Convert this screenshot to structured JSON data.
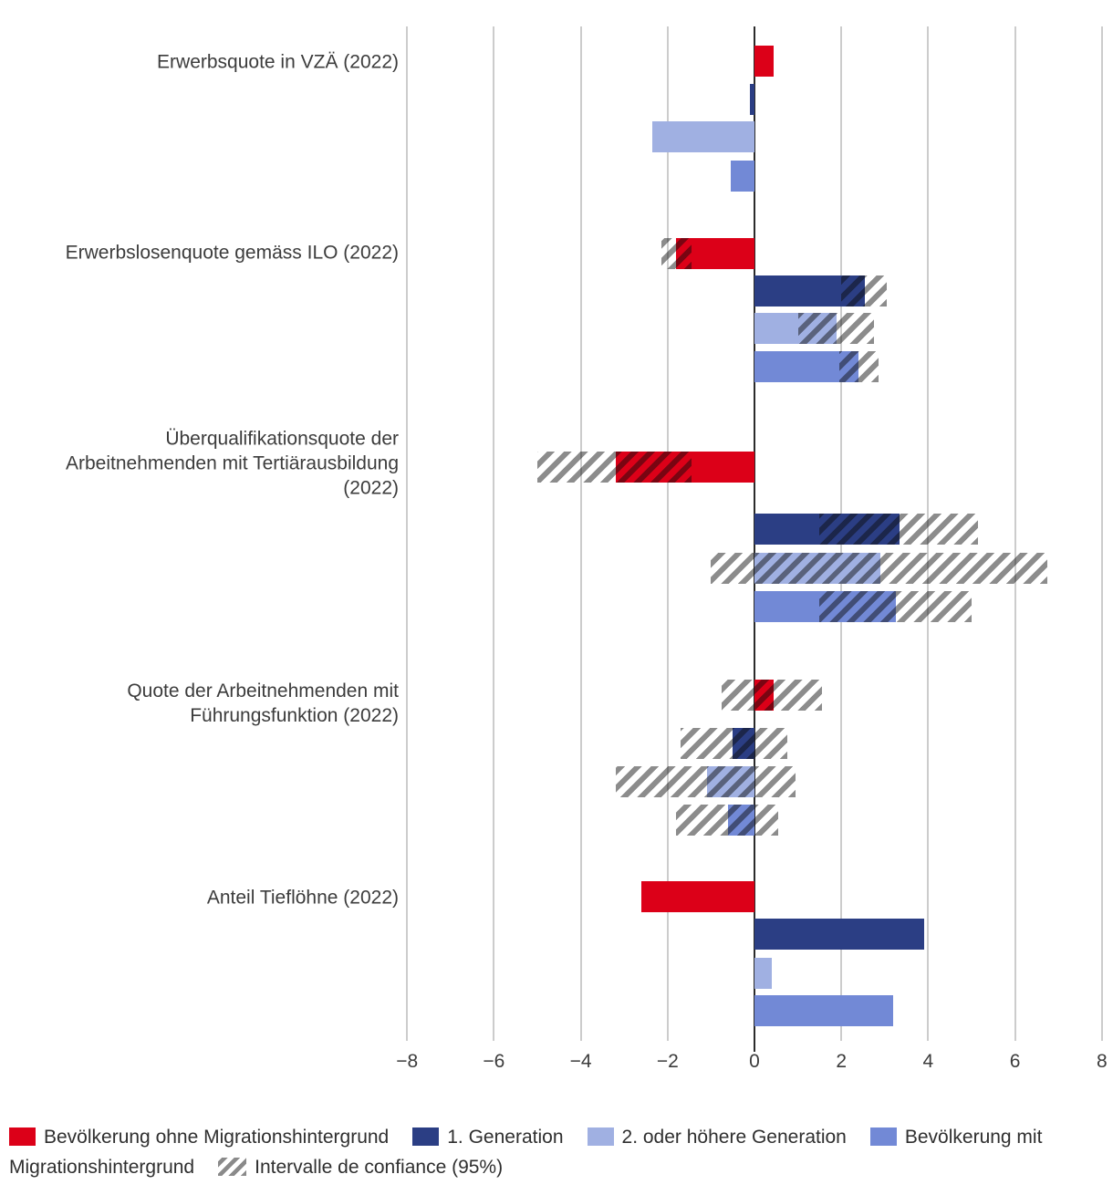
{
  "chart_data": {
    "type": "bar",
    "orientation": "horizontal",
    "title": "",
    "xlabel": "",
    "xlim": [
      -8,
      8
    ],
    "x_ticks": [
      -8,
      -6,
      -4,
      -2,
      0,
      2,
      4,
      6,
      8
    ],
    "x_tick_labels": [
      "−8",
      "−6",
      "−4",
      "−2",
      "0",
      "2",
      "4",
      "6",
      "8"
    ],
    "grid": "vertical-gridlines-on",
    "legend_position": "bottom",
    "series": [
      "Bevölkerung ohne Migrationshintergrund",
      "1. Generation",
      "2. oder höhere Generation",
      "Bevölkerung mit Migrationshintergrund"
    ],
    "ci_series_label": "Intervalle de confiance (95%)",
    "groups": [
      {
        "label": "Erwerbsquote in VZÄ (2022)",
        "values": [
          0.45,
          -0.1,
          -2.35,
          -0.55
        ],
        "ci": [
          null,
          null,
          null,
          null
        ]
      },
      {
        "label": "Erwerbslosenquote gemäss ILO (2022)",
        "values": [
          -1.8,
          2.55,
          1.9,
          2.4
        ],
        "ci": [
          [
            -2.15,
            -1.45
          ],
          [
            2.0,
            3.05
          ],
          [
            1.0,
            2.75
          ],
          [
            1.95,
            2.85
          ]
        ]
      },
      {
        "label": "Überqualifikationsquote der Arbeitnehmenden mit Tertiärausbildung (2022)",
        "values": [
          -3.2,
          3.35,
          2.9,
          3.25
        ],
        "ci": [
          [
            -5.0,
            -1.45
          ],
          [
            1.5,
            5.15
          ],
          [
            -1.0,
            6.75
          ],
          [
            1.5,
            5.0
          ]
        ]
      },
      {
        "label": "Quote der Arbeitnehmenden mit Führungsfunktion (2022)",
        "values": [
          0.45,
          -0.5,
          -1.1,
          -0.6
        ],
        "ci": [
          [
            -0.75,
            1.55
          ],
          [
            -1.7,
            0.75
          ],
          [
            -3.2,
            0.95
          ],
          [
            -1.8,
            0.55
          ]
        ]
      },
      {
        "label": "Anteil Tieflöhne (2022)",
        "values": [
          -2.6,
          3.9,
          0.4,
          3.2
        ],
        "ci": [
          null,
          null,
          null,
          null
        ]
      }
    ],
    "colors": {
      "ohne_migrationshintergrund": "#DC0018",
      "generation_1": "#2B3E84",
      "generation_2_oder_hoeher": "#A0B0E2",
      "mit_migrationshintergrund": "#7289D6",
      "ci_hatch_gray": "#8A8A8A",
      "gridline": "#CCCCCC",
      "zero_line": "#2B2B2B"
    }
  },
  "legend": {
    "items": [
      {
        "label": "Bevölkerung ohne Migrationshintergrund",
        "color": "#DC0018",
        "swatch": "solid"
      },
      {
        "label": "1. Generation",
        "color": "#2B3E84",
        "swatch": "solid"
      },
      {
        "label": "2. oder höhere Generation",
        "color": "#A0B0E2",
        "swatch": "solid"
      },
      {
        "label": "Bevölkerung mit Migrationshintergrund",
        "color": "#7289D6",
        "swatch": "solid"
      },
      {
        "label": "Intervalle de confiance (95%)",
        "color": "#8A8A8A",
        "swatch": "hatch"
      }
    ]
  }
}
